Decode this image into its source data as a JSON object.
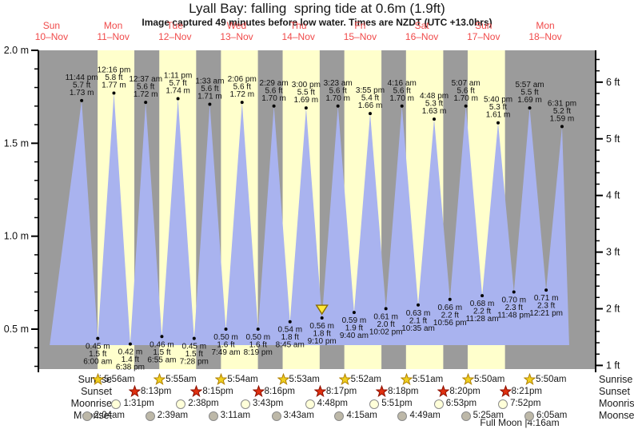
{
  "title": "Lyall Bay: falling  spring tide at 0.6m (1.9ft)",
  "subtitle": "Image captured 49 minutes before low water. Times are NZDT (UTC +13.0hrs)",
  "days": [
    {
      "weekday": "Sun",
      "date": "10–Nov"
    },
    {
      "weekday": "Mon",
      "date": "11–Nov"
    },
    {
      "weekday": "Tue",
      "date": "12–Nov"
    },
    {
      "weekday": "Wed",
      "date": "13–Nov"
    },
    {
      "weekday": "Thu",
      "date": "14–Nov"
    },
    {
      "weekday": "Fri",
      "date": "15–Nov"
    },
    {
      "weekday": "Sat",
      "date": "16–Nov"
    },
    {
      "weekday": "Sun",
      "date": "17–Nov"
    },
    {
      "weekday": "Mon",
      "date": "18–Nov"
    }
  ],
  "chart_data": {
    "type": "area",
    "ylabel_left": "meters",
    "ylabel_right": "feet",
    "ylim_m": [
      0.29,
      2.0
    ],
    "left_axis_major_m": [
      0.5,
      1.0,
      1.5,
      2.0
    ],
    "right_axis_major_ft": [
      1,
      2,
      3,
      4,
      5,
      6
    ],
    "high_tides": [
      {
        "day": 0,
        "time": "11:44 pm",
        "ft": 5.7,
        "m": 1.73
      },
      {
        "day": 1,
        "time": "12:16 pm",
        "ft": 5.8,
        "m": 1.77
      },
      {
        "day": 2,
        "time": "12:37 am",
        "ft": 5.6,
        "m": 1.72
      },
      {
        "day": 2,
        "time": "1:11 pm",
        "ft": 5.7,
        "m": 1.74
      },
      {
        "day": 3,
        "time": "1:33 am",
        "ft": 5.6,
        "m": 1.71
      },
      {
        "day": 3,
        "time": "2:06 pm",
        "ft": 5.6,
        "m": 1.72
      },
      {
        "day": 4,
        "time": "2:29 am",
        "ft": 5.6,
        "m": 1.7
      },
      {
        "day": 4,
        "time": "3:00 pm",
        "ft": 5.5,
        "m": 1.69
      },
      {
        "day": 5,
        "time": "3:23 am",
        "ft": 5.6,
        "m": 1.7
      },
      {
        "day": 5,
        "time": "3:55 pm",
        "ft": 5.4,
        "m": 1.66
      },
      {
        "day": 6,
        "time": "4:16 am",
        "ft": 5.6,
        "m": 1.7
      },
      {
        "day": 6,
        "time": "4:48 pm",
        "ft": 5.3,
        "m": 1.63
      },
      {
        "day": 7,
        "time": "5:07 am",
        "ft": 5.6,
        "m": 1.7
      },
      {
        "day": 7,
        "time": "5:40 pm",
        "ft": 5.3,
        "m": 1.61
      },
      {
        "day": 8,
        "time": "5:57 am",
        "ft": 5.5,
        "m": 1.69
      },
      {
        "day": 8,
        "time": "6:31 pm",
        "ft": 5.2,
        "m": 1.59
      }
    ],
    "low_tides": [
      {
        "day": 1,
        "time": "6:00 am",
        "ft": 1.5,
        "m": 0.45
      },
      {
        "day": 1,
        "time": "6:38 pm",
        "ft": 1.4,
        "m": 0.42
      },
      {
        "day": 2,
        "time": "6:55 am",
        "ft": 1.5,
        "m": 0.46
      },
      {
        "day": 2,
        "time": "7:28 pm",
        "ft": 1.5,
        "m": 0.45
      },
      {
        "day": 3,
        "time": "7:49 am",
        "ft": 1.6,
        "m": 0.5
      },
      {
        "day": 3,
        "time": "8:19 pm",
        "ft": 1.6,
        "m": 0.5
      },
      {
        "day": 4,
        "time": "8:45 am",
        "ft": 1.8,
        "m": 0.54
      },
      {
        "day": 4,
        "time": "9:10 pm",
        "ft": 1.8,
        "m": 0.56,
        "current": true
      },
      {
        "day": 5,
        "time": "9:40 am",
        "ft": 1.9,
        "m": 0.59
      },
      {
        "day": 5,
        "time": "10:02 pm",
        "ft": 2.0,
        "m": 0.61
      },
      {
        "day": 6,
        "time": "10:35 am",
        "ft": 2.1,
        "m": 0.63
      },
      {
        "day": 6,
        "time": "10:56 pm",
        "ft": 2.2,
        "m": 0.66
      },
      {
        "day": 7,
        "time": "11:28 am",
        "ft": 2.2,
        "m": 0.68
      },
      {
        "day": 7,
        "time": "11:48 pm",
        "ft": 2.3,
        "m": 0.7
      },
      {
        "day": 8,
        "time": "12:21 pm",
        "ft": 2.3,
        "m": 0.71
      }
    ]
  },
  "astro": {
    "row_labels": [
      "Sunrise",
      "Sunset",
      "Moonrise",
      "Moonset"
    ],
    "sunrise": {
      "first_day": 1,
      "times": [
        "5:56am",
        "5:55am",
        "5:54am",
        "5:53am",
        "5:52am",
        "5:51am",
        "5:50am",
        "5:50am"
      ]
    },
    "sunset": {
      "first_day": 1,
      "times": [
        "8:13pm",
        "8:15pm",
        "8:16pm",
        "8:17pm",
        "8:18pm",
        "8:20pm",
        "8:21pm"
      ]
    },
    "moonrise": {
      "first_day": 1,
      "times": [
        "1:31pm",
        "2:38pm",
        "3:43pm",
        "4:48pm",
        "5:51pm",
        "6:53pm",
        "7:52pm"
      ]
    },
    "moonset": {
      "first_day": 1,
      "times": [
        "2:04am",
        "2:39am",
        "3:11am",
        "3:43am",
        "4:15am",
        "4:49am",
        "5:25am",
        "6:05am"
      ]
    },
    "moon_phase": "Full Moon |4:16am"
  },
  "colors": {
    "night_band": "#9b9b9b",
    "daylight_band": "#ffffcc",
    "tide_area": "#a9b3ef",
    "day_label_red": "#f04a4a",
    "axis_black": "#000000",
    "label_text": "#111111",
    "marker_fill": "#ffe839",
    "marker_stroke": "#8a6d00",
    "sunrise_star_fill": "#f0d020",
    "sunrise_star_stroke": "#b08000",
    "sunset_star_fill": "#e03010",
    "sunset_star_stroke": "#8c1000",
    "moonrise_circle": "#ffffd9",
    "moonset_circle": "#bdb8a8",
    "moon_circle_border": "#8a8a8a"
  }
}
